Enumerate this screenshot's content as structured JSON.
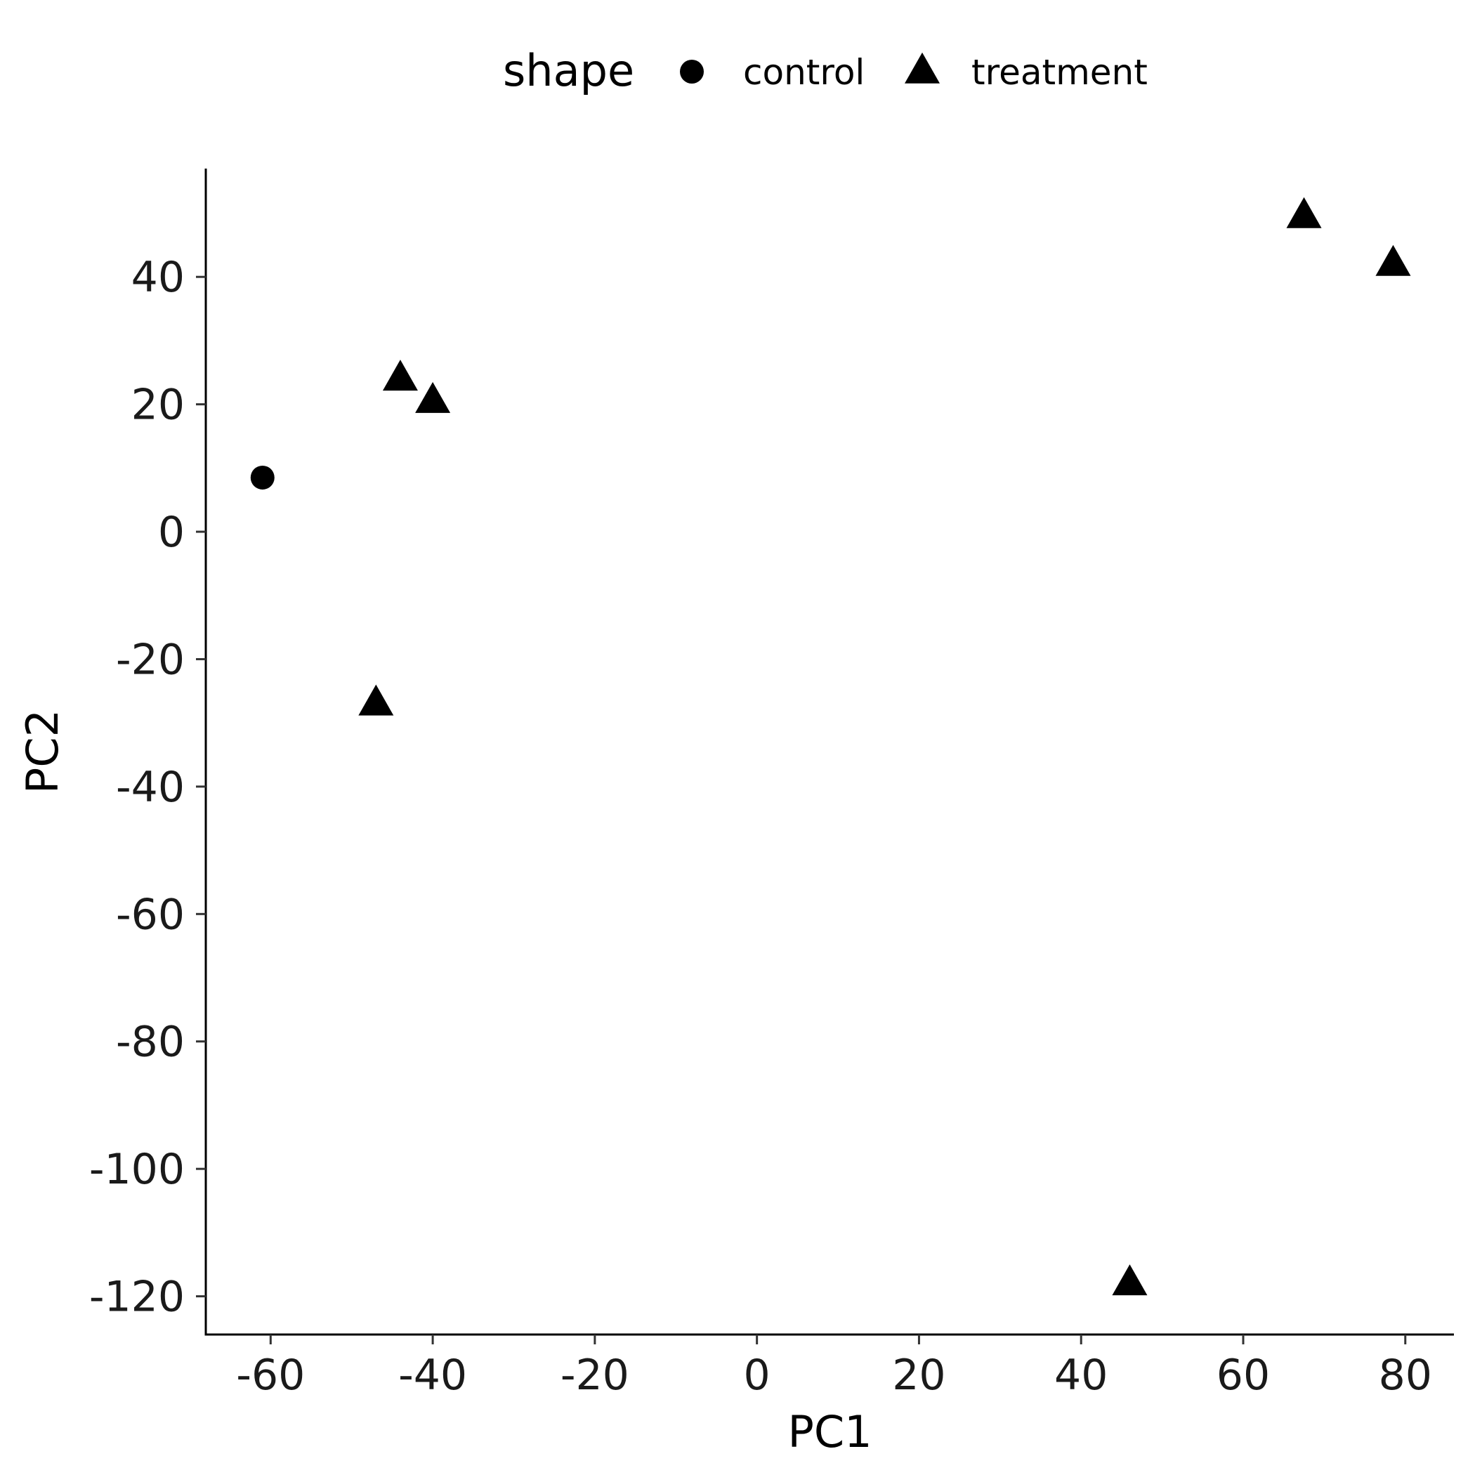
{
  "chart_data": {
    "type": "scatter",
    "xlabel": "PC1",
    "ylabel": "PC2",
    "xlim": [
      -68,
      86
    ],
    "ylim": [
      -126,
      57
    ],
    "x_ticks": [
      -60,
      -40,
      -20,
      0,
      20,
      40,
      60,
      80
    ],
    "y_ticks": [
      40,
      20,
      0,
      -20,
      -40,
      -60,
      -80,
      -100,
      -120
    ],
    "grid": false,
    "legend": {
      "title": "shape",
      "position": "top",
      "entries": [
        {
          "label": "control",
          "shape": "circle"
        },
        {
          "label": "treatment",
          "shape": "triangle"
        }
      ]
    },
    "series": [
      {
        "name": "control",
        "shape": "circle",
        "color": "#000000",
        "points": [
          {
            "x": -61,
            "y": 8.5
          }
        ]
      },
      {
        "name": "treatment",
        "shape": "triangle",
        "color": "#000000",
        "points": [
          {
            "x": -44,
            "y": 24
          },
          {
            "x": -40,
            "y": 20.5
          },
          {
            "x": -47,
            "y": -27
          },
          {
            "x": 46,
            "y": -118
          },
          {
            "x": 67.5,
            "y": 49.5
          },
          {
            "x": 78.5,
            "y": 42
          }
        ]
      }
    ]
  }
}
